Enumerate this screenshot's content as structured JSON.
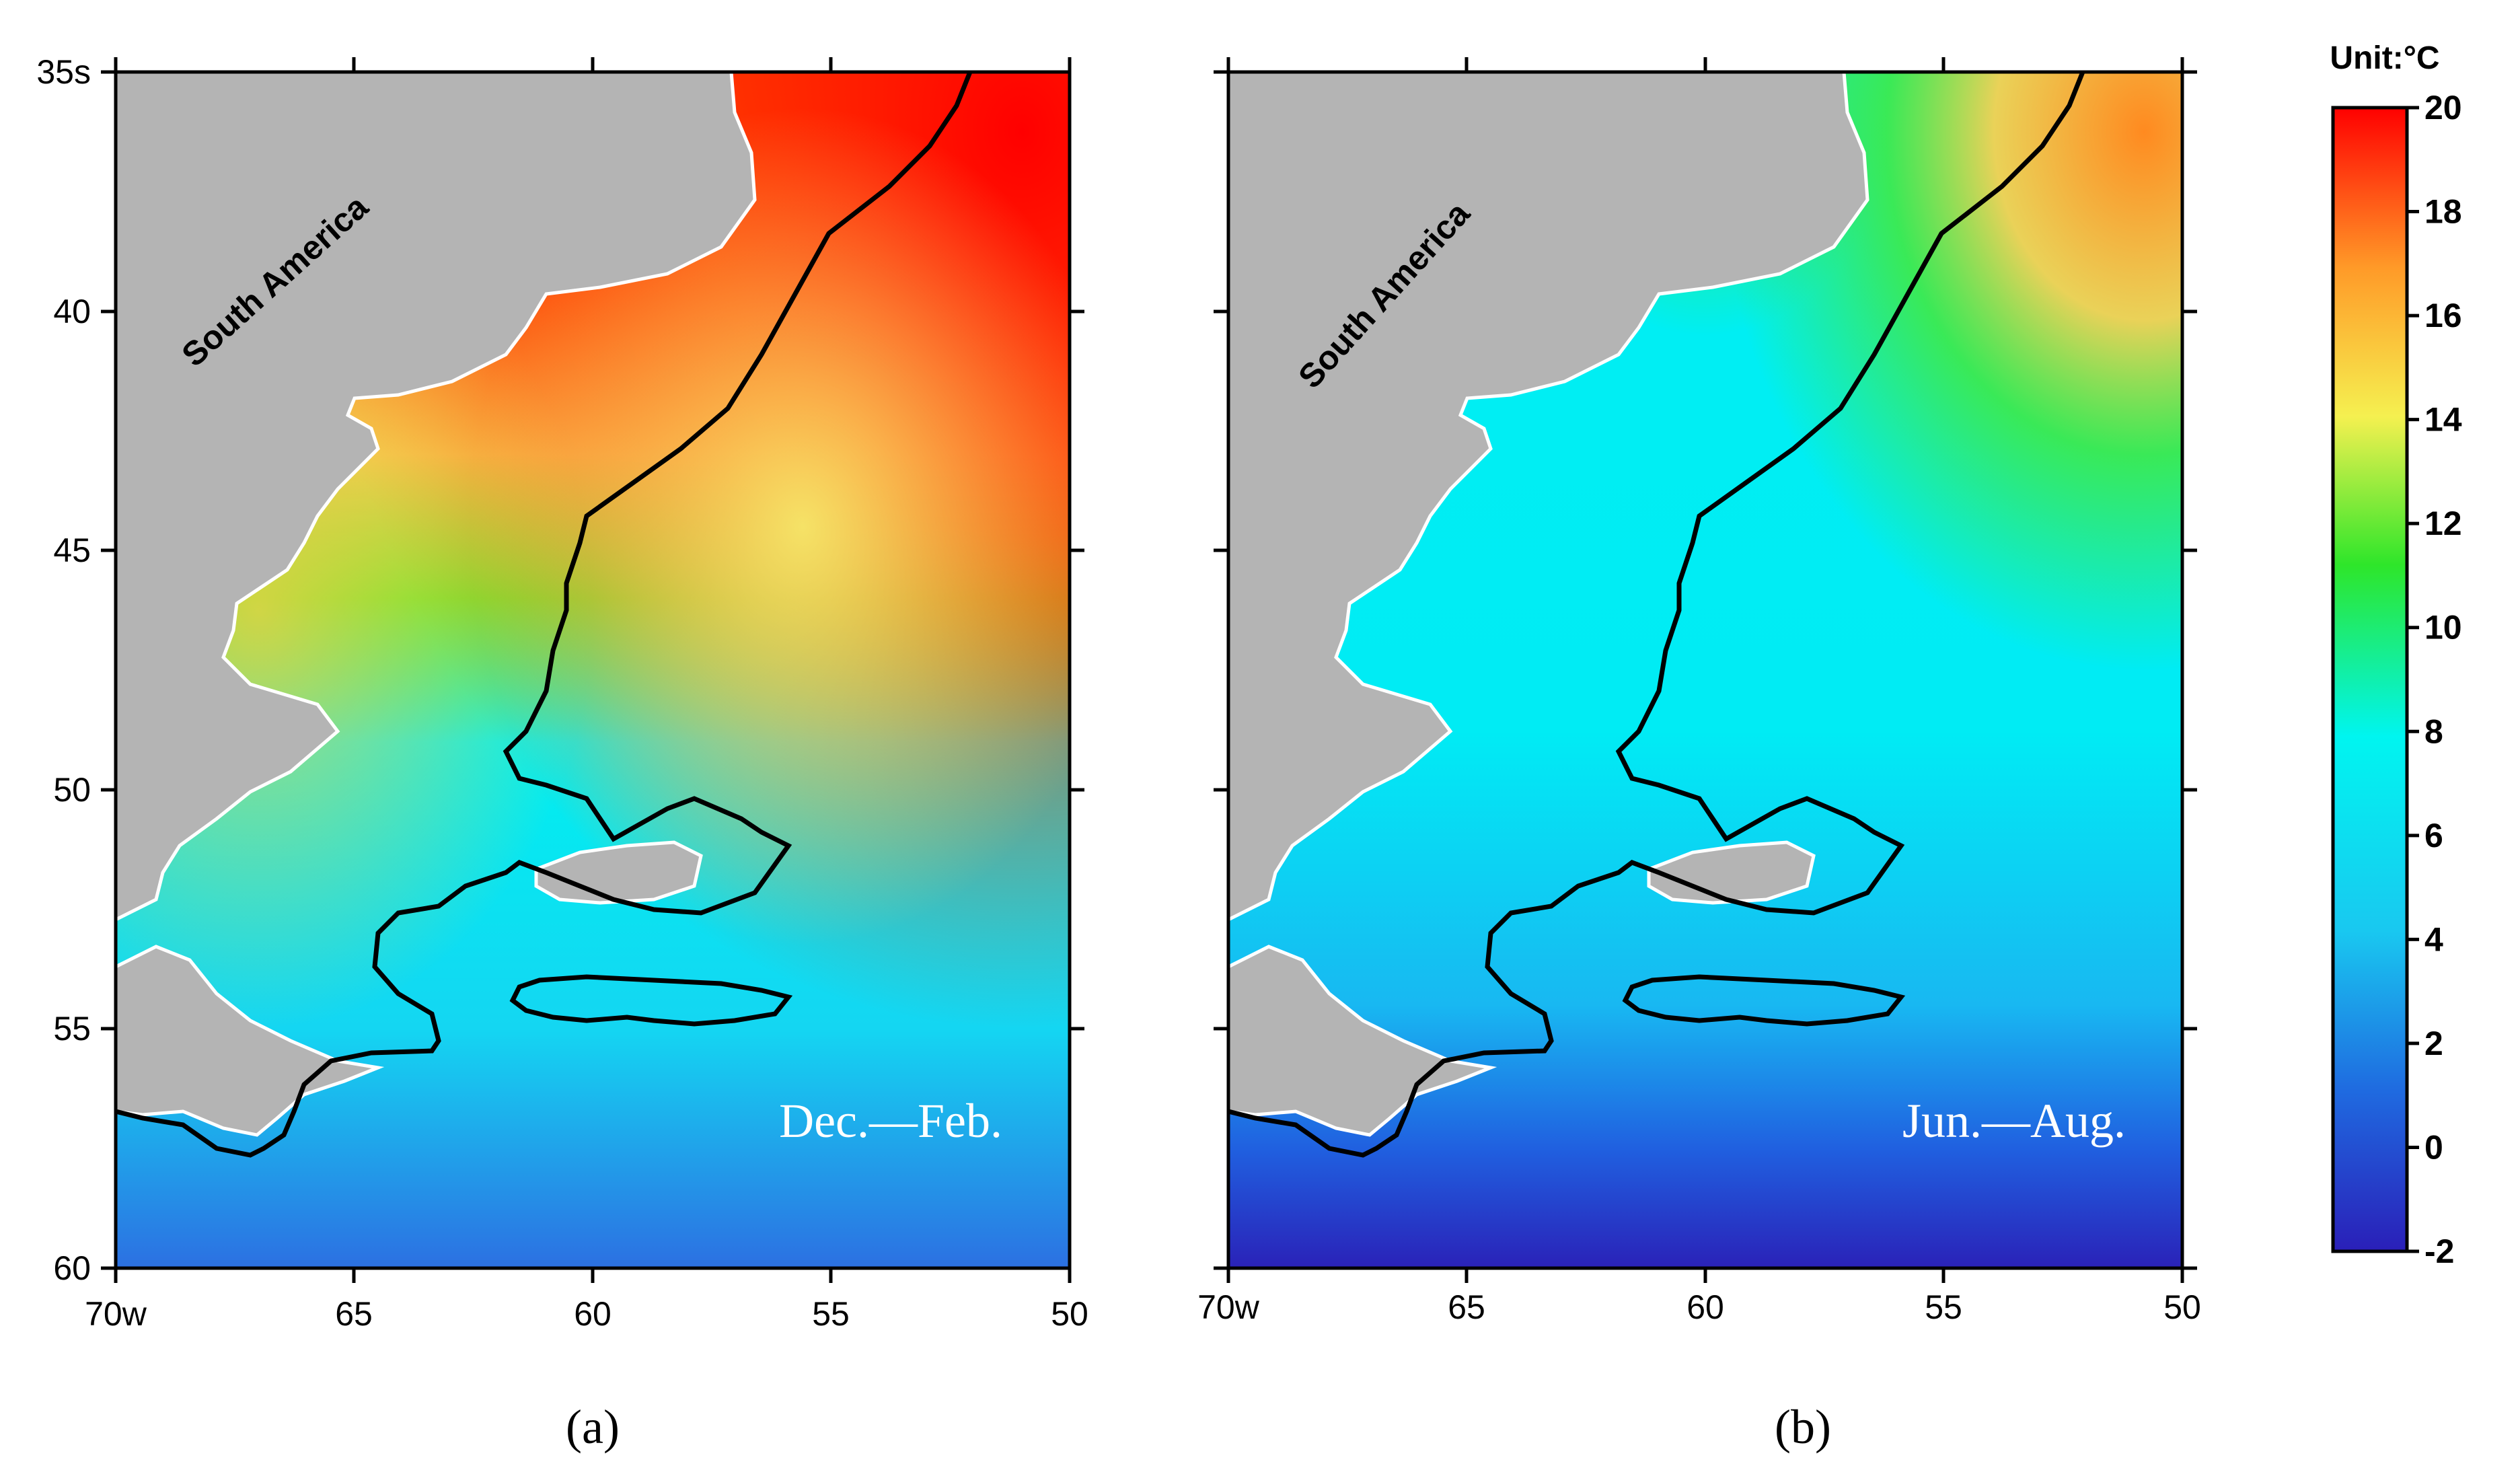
{
  "panels": [
    {
      "id": "a",
      "label": "(a)",
      "season": "Dec.—Feb.",
      "land_label": "South America",
      "x_ticks": [
        "70w",
        "65",
        "60",
        "55",
        "50"
      ],
      "y_ticks": [
        "35s",
        "40",
        "45",
        "50",
        "55",
        "60"
      ]
    },
    {
      "id": "b",
      "label": "(b)",
      "season": "Jun.—Aug.",
      "land_label": "South America",
      "x_ticks": [
        "70w",
        "65",
        "60",
        "55",
        "50"
      ],
      "y_ticks": []
    }
  ],
  "colorbar": {
    "title": "Unit:°C",
    "ticks": [
      "20",
      "18",
      "16",
      "14",
      "12",
      "10",
      "8",
      "6",
      "4",
      "2",
      "0",
      "-2"
    ],
    "min": -2,
    "max": 20,
    "colors": [
      "#2a1fb8",
      "#1f6ae0",
      "#19c8f0",
      "#00f5f0",
      "#2ee62a",
      "#f5f050",
      "#ff9a28",
      "#ff0000"
    ]
  },
  "map_extent": {
    "lon_west": 70,
    "lon_east": 50,
    "lat_north": 35,
    "lat_south": 60
  }
}
